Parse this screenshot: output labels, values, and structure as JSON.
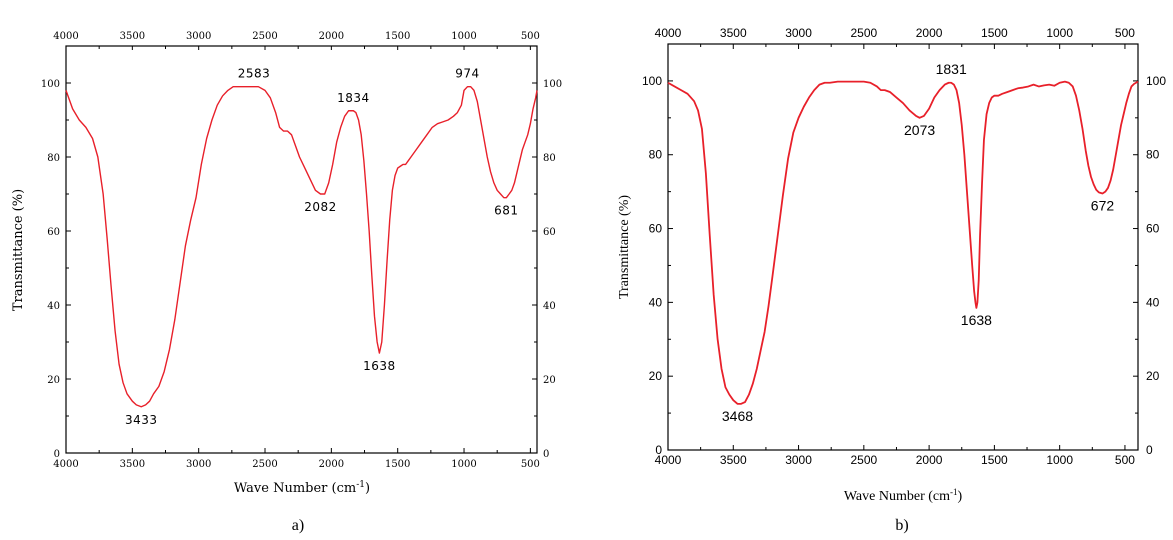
{
  "chart_data": [
    {
      "type": "line",
      "panel": "a)",
      "xlabel": "Wave Number (cm",
      "xlabel_sup": "-1",
      "xlabel_tail": ")",
      "ylabel": "Transmittance (%)",
      "xlim": [
        4000,
        450
      ],
      "ylim": [
        0,
        110
      ],
      "x_ticks": [
        4000,
        3500,
        3000,
        2500,
        2000,
        1500,
        1000,
        500
      ],
      "x_tick_labels": [
        "4000",
        "3500",
        "3000",
        "2500",
        "2000",
        "1500",
        "1000",
        "500"
      ],
      "y_ticks": [
        0,
        20,
        40,
        60,
        80,
        100
      ],
      "y_tick_labels": [
        "0",
        "20",
        "40",
        "60",
        "80",
        "100"
      ],
      "line_color": "#e8202a",
      "peaks": [
        {
          "label": "3433",
          "x": 3433,
          "y": 12.5,
          "pos": "below"
        },
        {
          "label": "2583",
          "x": 2583,
          "y": 99,
          "pos": "above"
        },
        {
          "label": "2082",
          "x": 2082,
          "y": 70,
          "pos": "below"
        },
        {
          "label": "1834",
          "x": 1834,
          "y": 92.5,
          "pos": "above"
        },
        {
          "label": "1638",
          "x": 1638,
          "y": 27,
          "pos": "below"
        },
        {
          "label": "974",
          "x": 974,
          "y": 99,
          "pos": "above"
        },
        {
          "label": "681",
          "x": 681,
          "y": 69,
          "pos": "below"
        }
      ],
      "series": [
        {
          "x": [
            4000,
            3950,
            3900,
            3850,
            3800,
            3760,
            3720,
            3690,
            3660,
            3630,
            3600,
            3570,
            3540,
            3500,
            3470,
            3433,
            3400,
            3370,
            3340,
            3300,
            3260,
            3220,
            3180,
            3140,
            3100,
            3060,
            3020,
            2980,
            2940,
            2900,
            2860,
            2820,
            2780,
            2740,
            2700,
            2660,
            2620,
            2583,
            2550,
            2500,
            2460,
            2420,
            2390,
            2360,
            2330,
            2300,
            2270,
            2240,
            2200,
            2160,
            2120,
            2082,
            2050,
            2020,
            1990,
            1960,
            1930,
            1900,
            1870,
            1850,
            1834,
            1815,
            1795,
            1775,
            1755,
            1735,
            1715,
            1695,
            1675,
            1655,
            1638,
            1620,
            1600,
            1580,
            1560,
            1540,
            1520,
            1500,
            1480,
            1460,
            1440,
            1420,
            1400,
            1360,
            1320,
            1280,
            1240,
            1200,
            1160,
            1120,
            1080,
            1050,
            1020,
            1000,
            974,
            950,
            925,
            900,
            875,
            850,
            825,
            800,
            775,
            750,
            725,
            700,
            681,
            660,
            640,
            620,
            600,
            580,
            560,
            540,
            520,
            500,
            480,
            460,
            450
          ],
          "y": [
            98,
            93,
            90,
            88,
            85,
            80,
            70,
            58,
            45,
            33,
            24,
            19,
            16,
            14,
            13,
            12.5,
            13,
            14,
            16,
            18,
            22,
            28,
            36,
            46,
            56,
            63,
            69,
            78,
            85,
            90,
            94,
            96.5,
            98,
            99,
            99,
            99,
            99,
            99,
            99,
            98,
            96,
            92,
            88,
            87,
            87,
            86,
            83,
            80,
            77,
            74,
            71,
            70,
            70,
            73,
            78,
            84,
            88,
            91,
            92.5,
            92.5,
            92.5,
            92,
            90,
            86,
            79,
            70,
            60,
            48,
            37,
            30,
            27,
            30,
            40,
            52,
            63,
            71,
            75,
            77,
            77.5,
            78,
            78,
            79,
            80,
            82,
            84,
            86,
            88,
            89,
            89.5,
            90,
            91,
            92,
            94,
            98,
            99,
            99,
            98,
            95,
            90,
            85,
            80,
            76,
            73,
            71,
            70,
            69,
            69,
            70,
            71,
            73,
            76,
            79,
            82,
            84,
            86,
            89,
            93,
            96,
            98
          ]
        }
      ]
    },
    {
      "type": "line",
      "panel": "b)",
      "xlabel": "Wave Number (cm",
      "xlabel_sup": "-1",
      "xlabel_tail": ")",
      "ylabel": "Transmittance (%)",
      "xlim": [
        4000,
        400
      ],
      "ylim": [
        0,
        110
      ],
      "x_ticks": [
        4000,
        3500,
        3000,
        2500,
        2000,
        1500,
        1000,
        500
      ],
      "x_tick_labels": [
        "4000",
        "3500",
        "3000",
        "2500",
        "2000",
        "1500",
        "1000",
        "500"
      ],
      "y_ticks": [
        0,
        20,
        40,
        60,
        80,
        100
      ],
      "y_tick_labels": [
        "0",
        "20",
        "40",
        "60",
        "80",
        "100"
      ],
      "line_color": "#e8202a",
      "peaks": [
        {
          "label": "3468",
          "x": 3468,
          "y": 12.5,
          "pos": "below"
        },
        {
          "label": "2073",
          "x": 2073,
          "y": 90,
          "pos": "below"
        },
        {
          "label": "1831",
          "x": 1831,
          "y": 99.5,
          "pos": "above"
        },
        {
          "label": "1638",
          "x": 1638,
          "y": 38.5,
          "pos": "below"
        },
        {
          "label": "672",
          "x": 672,
          "y": 69.5,
          "pos": "below"
        }
      ],
      "series": [
        {
          "x": [
            4000,
            3950,
            3900,
            3850,
            3800,
            3770,
            3740,
            3710,
            3680,
            3650,
            3620,
            3590,
            3560,
            3530,
            3500,
            3468,
            3440,
            3410,
            3380,
            3350,
            3320,
            3290,
            3260,
            3230,
            3200,
            3160,
            3120,
            3080,
            3040,
            3000,
            2960,
            2920,
            2880,
            2840,
            2800,
            2760,
            2700,
            2600,
            2500,
            2450,
            2400,
            2370,
            2340,
            2300,
            2250,
            2200,
            2150,
            2100,
            2073,
            2040,
            2000,
            1960,
            1920,
            1880,
            1850,
            1831,
            1810,
            1790,
            1770,
            1750,
            1730,
            1710,
            1690,
            1670,
            1655,
            1645,
            1638,
            1630,
            1620,
            1610,
            1595,
            1580,
            1560,
            1540,
            1520,
            1500,
            1470,
            1440,
            1400,
            1360,
            1320,
            1280,
            1240,
            1200,
            1160,
            1120,
            1080,
            1040,
            1000,
            960,
            930,
            900,
            875,
            850,
            825,
            800,
            780,
            760,
            740,
            720,
            700,
            672,
            650,
            630,
            610,
            590,
            570,
            550,
            530,
            510,
            490,
            470,
            450,
            430,
            410,
            400
          ],
          "y": [
            99.5,
            98.5,
            97.5,
            96.5,
            94.5,
            92,
            87,
            75,
            58,
            42,
            30,
            22,
            17,
            15,
            13.5,
            12.5,
            12.5,
            13,
            15,
            18,
            22,
            27,
            32,
            39,
            47,
            58,
            69,
            79,
            86,
            90,
            93,
            95.5,
            97.5,
            99,
            99.5,
            99.5,
            99.8,
            99.8,
            99.8,
            99.5,
            98.5,
            97.5,
            97.5,
            97,
            95.5,
            94,
            92,
            90.5,
            90,
            90.5,
            92.5,
            95.5,
            97.5,
            99,
            99.5,
            99.5,
            99,
            97.5,
            94,
            88,
            80,
            70,
            60,
            50,
            43,
            40,
            38.5,
            40,
            46,
            58,
            72,
            84,
            91,
            94,
            95.5,
            96,
            96,
            96.5,
            97,
            97.5,
            98,
            98.2,
            98.5,
            99,
            98.5,
            98.8,
            99,
            98.7,
            99.5,
            99.8,
            99.5,
            98.5,
            96,
            92,
            87,
            81,
            77,
            74,
            72,
            70.5,
            69.8,
            69.5,
            70,
            71,
            73,
            76,
            80,
            84,
            88,
            91,
            94,
            96.5,
            98.5,
            99.2,
            99.6,
            99.8
          ]
        }
      ]
    }
  ]
}
